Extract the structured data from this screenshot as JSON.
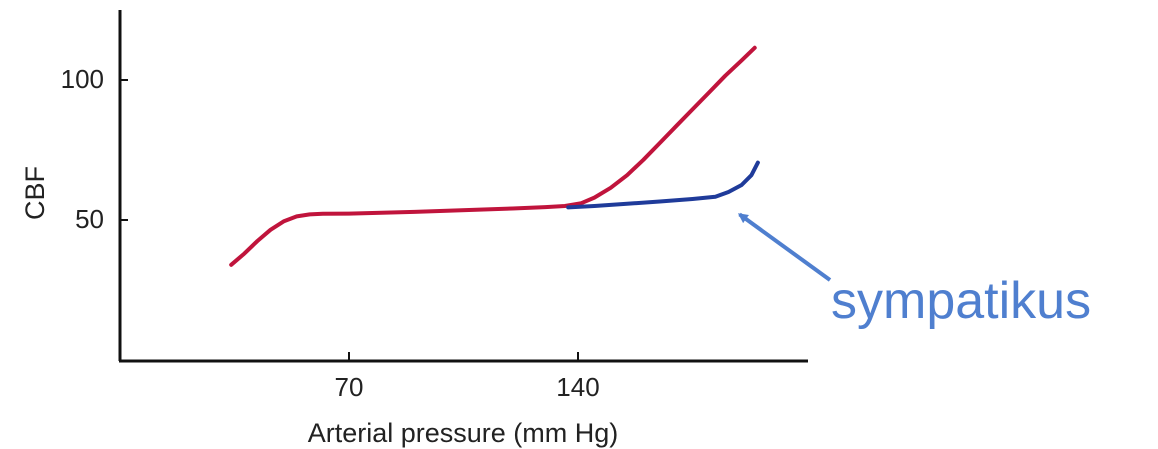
{
  "chart_data": {
    "type": "line",
    "title": "",
    "xlabel": "Arterial pressure (mm Hg)",
    "ylabel": "CBF",
    "xlim": [
      0,
      196
    ],
    "ylim": [
      -2,
      125
    ],
    "x_ticks": [
      70,
      140
    ],
    "y_ticks": [
      100,
      50
    ],
    "x_tick_labels": [
      "70",
      "140"
    ],
    "y_tick_labels": [
      "100",
      "50"
    ],
    "grid": false,
    "series": [
      {
        "name": "",
        "color": "#c0143c",
        "points": [
          [
            34,
            34
          ],
          [
            38,
            38
          ],
          [
            42,
            42.5
          ],
          [
            46,
            46.5
          ],
          [
            50,
            49.5
          ],
          [
            54,
            51.3
          ],
          [
            58,
            52
          ],
          [
            62,
            52.2
          ],
          [
            70,
            52.3
          ],
          [
            80,
            52.6
          ],
          [
            90,
            52.9
          ],
          [
            100,
            53.3
          ],
          [
            110,
            53.7
          ],
          [
            120,
            54.1
          ],
          [
            130,
            54.6
          ],
          [
            136,
            55
          ],
          [
            141,
            56
          ],
          [
            145,
            58
          ],
          [
            150,
            61.5
          ],
          [
            155,
            66
          ],
          [
            160,
            71.5
          ],
          [
            165,
            77.5
          ],
          [
            170,
            83.5
          ],
          [
            175,
            89.5
          ],
          [
            180,
            95.5
          ],
          [
            185,
            101.5
          ],
          [
            190,
            107
          ],
          [
            194,
            111.5
          ]
        ]
      },
      {
        "name": "",
        "color": "#1f3b9a",
        "points": [
          [
            137,
            54.5
          ],
          [
            145,
            55
          ],
          [
            155,
            55.8
          ],
          [
            165,
            56.6
          ],
          [
            175,
            57.5
          ],
          [
            182,
            58.3
          ],
          [
            186,
            60
          ],
          [
            190,
            62.5
          ],
          [
            193,
            66
          ],
          [
            195,
            70.5
          ]
        ]
      }
    ],
    "annotation": {
      "text": "sympatikus",
      "color": "#4f7fcf",
      "points_to": [
        190,
        52
      ]
    }
  }
}
